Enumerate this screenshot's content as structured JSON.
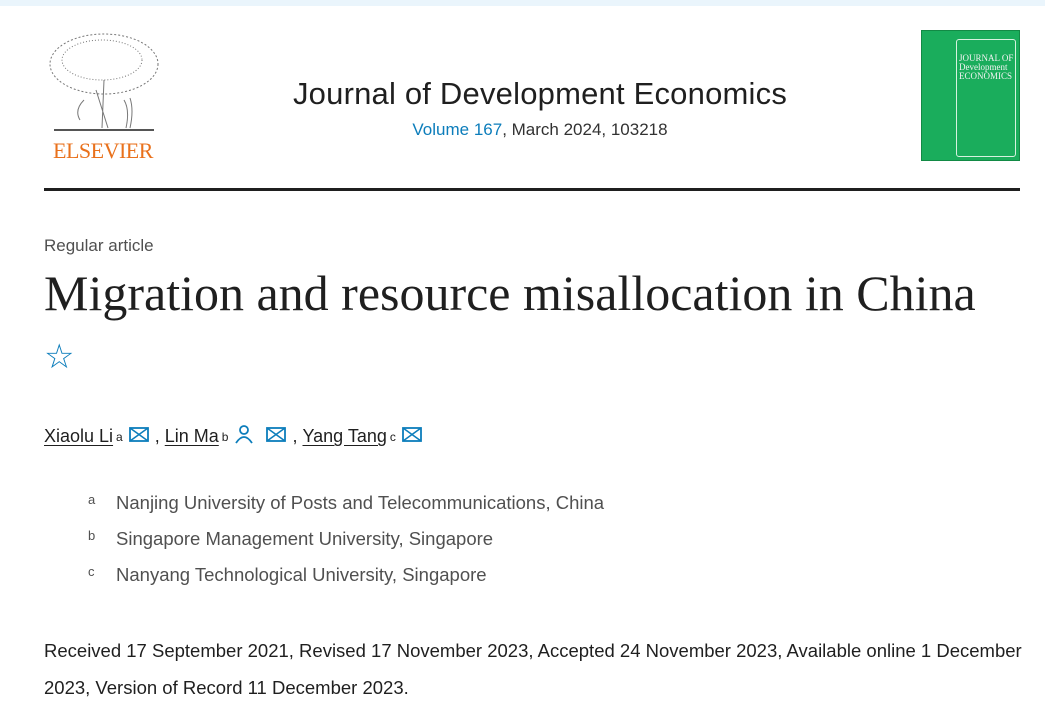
{
  "publisher": {
    "name": "ELSEVIER",
    "brand_color": "#e9711c"
  },
  "journal": {
    "title": "Journal of Development Economics",
    "volume_link": "Volume 167",
    "issue_rest": ", March 2024, 103218",
    "link_color": "#0c7dbb",
    "cover_text": "JOURNAL OF Development ECONOMICS",
    "cover_color": "#1aad5c"
  },
  "article": {
    "type": "Regular article",
    "title": "Migration and resource misallocation in China",
    "star_icon": "☆"
  },
  "authors": [
    {
      "name": "Xiaolu Li",
      "sup": "a",
      "icons": [
        "email-icon"
      ]
    },
    {
      "name": "Lin Ma",
      "sup": "b",
      "icons": [
        "person-icon",
        "email-icon"
      ]
    },
    {
      "name": "Yang Tang",
      "sup": "c",
      "icons": [
        "email-icon"
      ]
    }
  ],
  "separator": ", ",
  "affiliations": [
    {
      "label": "a",
      "text": "Nanjing University of Posts and Telecommunications, China"
    },
    {
      "label": "b",
      "text": "Singapore Management University, Singapore"
    },
    {
      "label": "c",
      "text": "Nanyang Technological University, Singapore"
    }
  ],
  "dates": "Received 17 September 2021, Revised 17 November 2023, Accepted 24 November 2023, Available online 1 December 2023, Version of Record 11 December 2023."
}
